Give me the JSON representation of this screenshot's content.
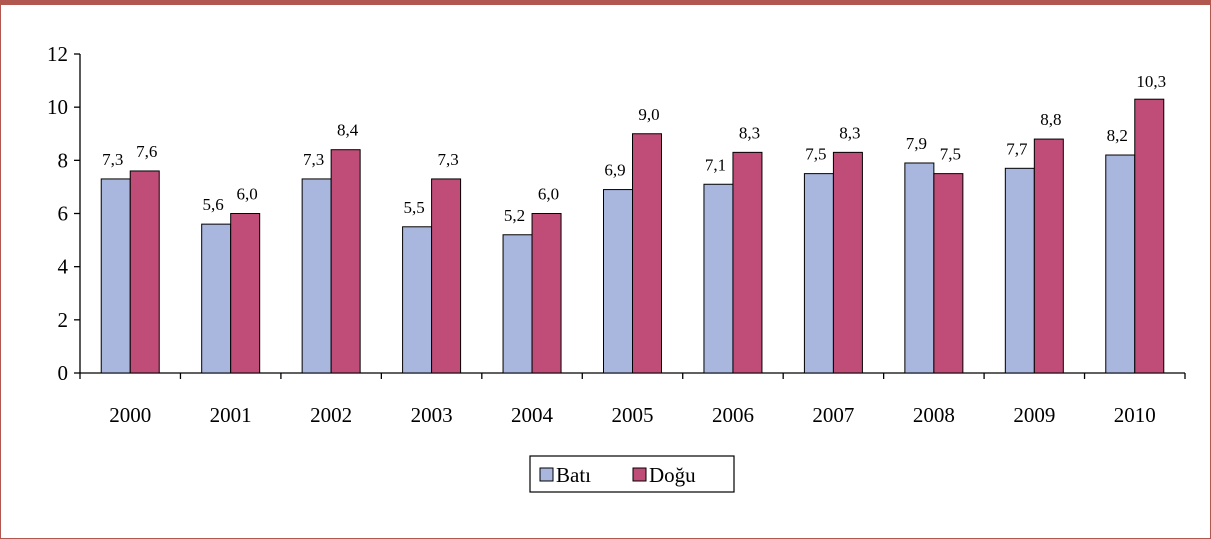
{
  "chart_data": {
    "type": "bar",
    "categories": [
      "2000",
      "2001",
      "2002",
      "2003",
      "2004",
      "2005",
      "2006",
      "2007",
      "2008",
      "2009",
      "2010"
    ],
    "series": [
      {
        "name": "Batı",
        "values": [
          7.3,
          5.6,
          7.3,
          5.5,
          5.2,
          6.9,
          7.1,
          7.5,
          7.9,
          7.7,
          8.2
        ],
        "labels": [
          "7,3",
          "5,6",
          "7,3",
          "5,5",
          "5,2",
          "6,9",
          "7,1",
          "7,5",
          "7,9",
          "7,7",
          "8,2"
        ],
        "color": "#a9b6de"
      },
      {
        "name": "Doğu",
        "values": [
          7.6,
          6.0,
          8.4,
          7.3,
          6.0,
          9.0,
          8.3,
          8.3,
          7.5,
          8.8,
          10.3
        ],
        "labels": [
          "7,6",
          "6,0",
          "8,4",
          "7,3",
          "6,0",
          "9,0",
          "8,3",
          "8,3",
          "7,5",
          "8,8",
          "10,3"
        ],
        "color": "#c04d78"
      }
    ],
    "yticks": [
      0,
      2,
      4,
      6,
      8,
      10,
      12
    ],
    "ylim": [
      0,
      12
    ],
    "grid": false,
    "legend": "bottom-center",
    "frame_color": "#b1574f"
  }
}
